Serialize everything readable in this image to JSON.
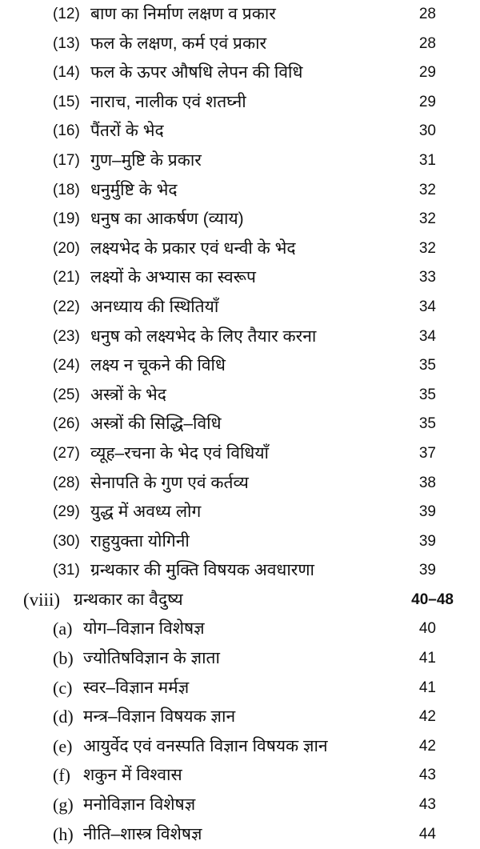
{
  "entries": [
    {
      "num": "(12)",
      "title": "बाण का निर्माण लक्षण व प्रकार",
      "page": "28",
      "kind": "item"
    },
    {
      "num": "(13)",
      "title": "फल के लक्षण, कर्म एवं प्रकार",
      "page": "28",
      "kind": "item"
    },
    {
      "num": "(14)",
      "title": "फल के ऊपर औषधि लेपन की विधि",
      "page": "29",
      "kind": "item"
    },
    {
      "num": "(15)",
      "title": "नाराच, नालीक एवं शतघ्नी",
      "page": "29",
      "kind": "item"
    },
    {
      "num": "(16)",
      "title": "पैंतरों के भेद",
      "page": "30",
      "kind": "item"
    },
    {
      "num": "(17)",
      "title": "गुण–मुष्टि के प्रकार",
      "page": "31",
      "kind": "item"
    },
    {
      "num": "(18)",
      "title": "धनुर्मुष्टि के भेद",
      "page": "32",
      "kind": "item"
    },
    {
      "num": "(19)",
      "title": "धनुष का आकर्षण (व्याय)",
      "page": "32",
      "kind": "item"
    },
    {
      "num": "(20)",
      "title": "लक्ष्यभेद के प्रकार एवं धन्वी के भेद",
      "page": "32",
      "kind": "item"
    },
    {
      "num": "(21)",
      "title": "लक्ष्यों के अभ्यास का स्वरूप",
      "page": "33",
      "kind": "item"
    },
    {
      "num": "(22)",
      "title": "अनध्याय की स्थितियाँ",
      "page": "34",
      "kind": "item"
    },
    {
      "num": "(23)",
      "title": "धनुष को लक्ष्यभेद के लिए तैयार करना",
      "page": "34",
      "kind": "item"
    },
    {
      "num": "(24)",
      "title": "लक्ष्य न चूकने की विधि",
      "page": "35",
      "kind": "item"
    },
    {
      "num": "(25)",
      "title": "अस्त्रों के भेद",
      "page": "35",
      "kind": "item"
    },
    {
      "num": "(26)",
      "title": "अस्त्रों की सिद्धि–विधि",
      "page": "35",
      "kind": "item"
    },
    {
      "num": "(27)",
      "title": "व्यूह–रचना के भेद एवं विधियाँ",
      "page": "37",
      "kind": "item"
    },
    {
      "num": "(28)",
      "title": "सेनापति के गुण एवं कर्तव्य",
      "page": "38",
      "kind": "item"
    },
    {
      "num": "(29)",
      "title": "युद्ध में अवध्य लोग",
      "page": "39",
      "kind": "item"
    },
    {
      "num": "(30)",
      "title": "राहुयुक्ता योगिनी",
      "page": "39",
      "kind": "item"
    },
    {
      "num": "(31)",
      "title": "ग्रन्थकार की मुक्ति विषयक अवधारणा",
      "page": "39",
      "kind": "item"
    },
    {
      "num": "(viii)",
      "title": "ग्रन्थकार का वैदुष्य",
      "page": "40–48",
      "kind": "section"
    },
    {
      "num": "(a)",
      "title": "योग–विज्ञान विशेषज्ञ",
      "page": "40",
      "kind": "letter"
    },
    {
      "num": "(b)",
      "title": "ज्योतिषविज्ञान के ज्ञाता",
      "page": "41",
      "kind": "letter"
    },
    {
      "num": "(c)",
      "title": "स्वर–विज्ञान मर्मज्ञ",
      "page": "41",
      "kind": "letter"
    },
    {
      "num": "(d)",
      "title": "मन्त्र–विज्ञान विषयक ज्ञान",
      "page": "42",
      "kind": "letter"
    },
    {
      "num": "(e)",
      "title": "आयुर्वेद एवं वनस्पति विज्ञान विषयक ज्ञान",
      "page": "42",
      "kind": "letter"
    },
    {
      "num": "(f)",
      "title": "शकुन में विश्वास",
      "page": "43",
      "kind": "letter"
    },
    {
      "num": "(g)",
      "title": "मनोविज्ञान विशेषज्ञ",
      "page": "43",
      "kind": "letter"
    },
    {
      "num": "(h)",
      "title": "नीति–शास्त्र विशेषज्ञ",
      "page": "44",
      "kind": "letter"
    }
  ]
}
